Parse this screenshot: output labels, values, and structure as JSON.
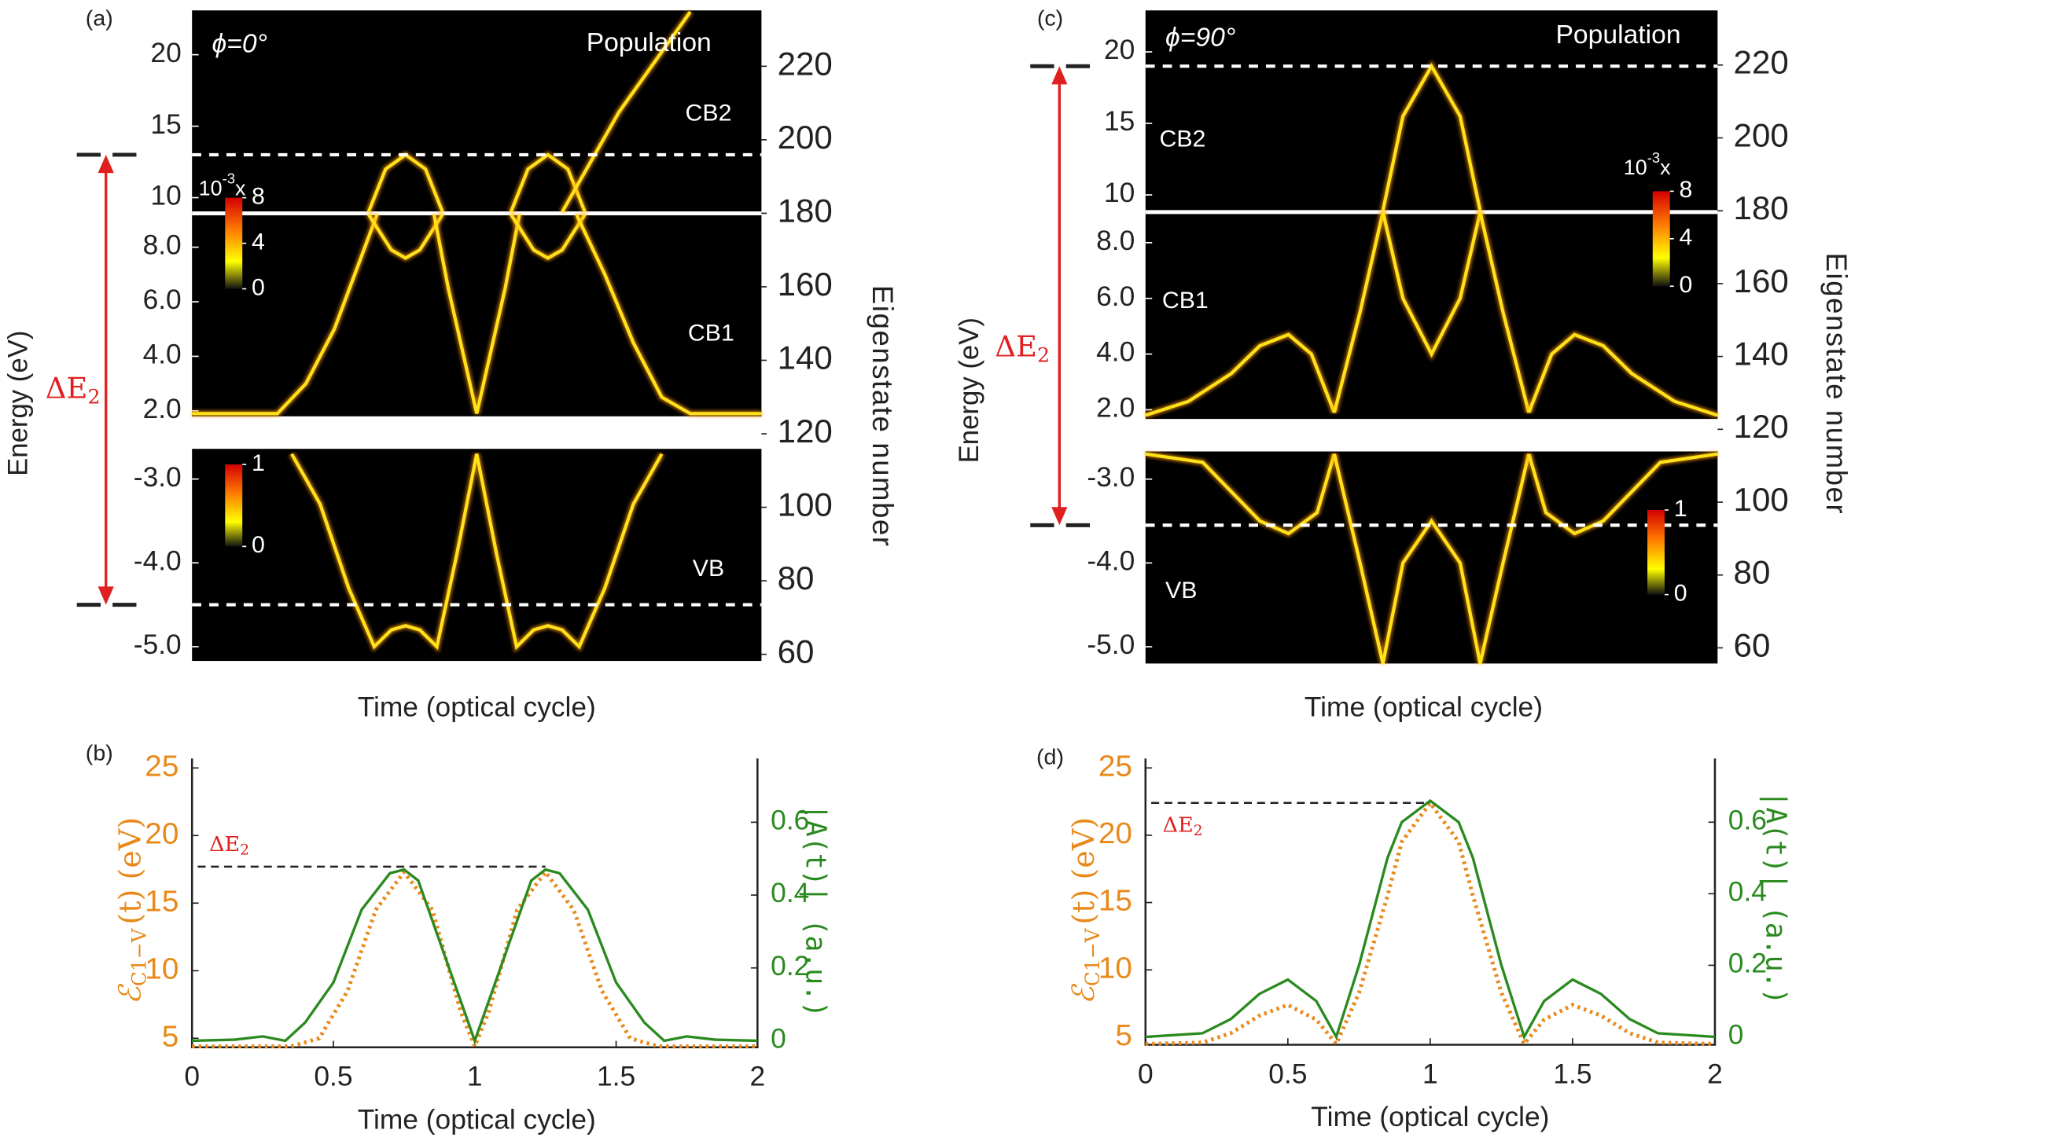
{
  "chart_data": [
    {
      "type": "heatmap",
      "panel": "(a)",
      "title": "ϕ=0°",
      "label": "Population",
      "xlabel": "Time (optical cycle)",
      "ylabel": "Energy  (eV)",
      "y2label": "Eigenstate number",
      "annotation": {
        "main": "ΔE",
        "sub": "2"
      },
      "xlim": [
        0,
        2
      ],
      "trace_color": "#ffe21a",
      "segments": [
        {
          "name": "CB2",
          "ylim": [
            8.9,
            23.1
          ],
          "yticks": [
            10,
            15,
            20
          ],
          "level": 13.0,
          "traces": [
            {
              "x": [
                0.62,
                0.68,
                0.75,
                0.82,
                0.88
              ],
              "values": [
                9.0,
                12.0,
                13.0,
                12.0,
                9.0
              ]
            },
            {
              "x": [
                1.12,
                1.18,
                1.25,
                1.32,
                1.38
              ],
              "values": [
                9.0,
                12.0,
                13.0,
                12.0,
                9.0
              ]
            },
            {
              "x": [
                1.3,
                1.5,
                1.75
              ],
              "values": [
                9.0,
                16.0,
                23.0
              ]
            }
          ]
        },
        {
          "name": "CB1",
          "ylim": [
            1.8,
            9.24
          ],
          "yticks": [
            {
              "value": 2,
              "label": "2.0"
            },
            {
              "value": 4,
              "label": "4.0"
            },
            {
              "value": 6,
              "label": "6.0"
            },
            {
              "value": 8,
              "label": "8.0"
            }
          ],
          "traces": [
            {
              "x": [
                0,
                0.3,
                0.4,
                0.5,
                0.6,
                0.65
              ],
              "values": [
                1.9,
                1.9,
                3.0,
                5.0,
                7.8,
                9.2
              ]
            },
            {
              "x": [
                0.62,
                0.7,
                0.75,
                0.8,
                0.88
              ],
              "values": [
                9.2,
                7.9,
                7.6,
                7.9,
                9.2
              ]
            },
            {
              "x": [
                0.85,
                0.9,
                0.95,
                1.0,
                1.05,
                1.1,
                1.15
              ],
              "values": [
                9.2,
                6.5,
                4.2,
                1.9,
                4.2,
                6.5,
                9.2
              ]
            },
            {
              "x": [
                1.12,
                1.2,
                1.25,
                1.3,
                1.38
              ],
              "values": [
                9.2,
                7.9,
                7.6,
                7.9,
                9.2
              ]
            },
            {
              "x": [
                1.35,
                1.45,
                1.55,
                1.65,
                1.75,
                2.0
              ],
              "values": [
                9.2,
                7.0,
                4.5,
                2.5,
                1.9,
                1.9
              ]
            }
          ]
        },
        {
          "name": "VB",
          "ylim": [
            -5.17,
            -2.64
          ],
          "yticks": [
            {
              "value": -5,
              "label": "-5.0"
            },
            {
              "value": -4,
              "label": "-4.0"
            },
            {
              "value": -3,
              "label": "-3.0"
            }
          ],
          "level": -4.5,
          "traces": [
            {
              "x": [
                0.35,
                0.45,
                0.55,
                0.64,
                0.7,
                0.75,
                0.8,
                0.86,
                0.93,
                1.0,
                1.07,
                1.14,
                1.2,
                1.25,
                1.3,
                1.36,
                1.45,
                1.55,
                1.65
              ],
              "values": [
                -2.7,
                -3.3,
                -4.3,
                -5.0,
                -4.8,
                -4.75,
                -4.8,
                -5.0,
                -3.9,
                -2.7,
                -3.9,
                -5.0,
                -4.8,
                -4.75,
                -4.8,
                -5.0,
                -4.3,
                -3.3,
                -2.7
              ]
            }
          ]
        }
      ],
      "y2lim": [
        58.2,
        235.2
      ],
      "y2ticks": [
        60,
        80,
        100,
        120,
        140,
        160,
        180,
        200,
        220
      ],
      "colorbars": [
        {
          "lim": [
            0,
            8
          ],
          "ticks": [
            0,
            4,
            8
          ],
          "scale": {
            "base": "10",
            "exp": "-3",
            "suffix": "x"
          }
        },
        {
          "lim": [
            0,
            1
          ],
          "ticks": [
            0,
            1
          ]
        }
      ]
    },
    {
      "type": "line",
      "panel": "(b)",
      "xlabel": "Time (optical cycle)",
      "ylabel": {
        "symbol": "ℰ",
        "sub": "C1−V",
        "rest": "(t)  (eV)"
      },
      "y2label": "|A(t)| (a.u.)",
      "annotation": {
        "main": "ΔE",
        "sub": "2"
      },
      "level": {
        "y": 17.7,
        "x": [
          0.02,
          1.25
        ]
      },
      "xlim": [
        0,
        2
      ],
      "xticks": [
        0,
        0.5,
        1,
        1.5,
        2
      ],
      "ylim": [
        4.33,
        25.7
      ],
      "yticks": [
        5,
        10,
        15,
        20,
        25
      ],
      "y2lim": [
        -0.018,
        0.775
      ],
      "y2ticks": [
        0,
        0.2,
        0.4,
        0.6
      ],
      "series": [
        {
          "color": "#e8891a",
          "axis": "y",
          "dotted": true,
          "x": [
            0,
            0.35,
            0.45,
            0.55,
            0.65,
            0.75,
            0.85,
            0.95,
            1.0,
            1.05,
            1.15,
            1.25,
            1.35,
            1.45,
            1.55,
            1.65,
            2.0
          ],
          "values": [
            4.4,
            4.4,
            5.0,
            8.5,
            14.5,
            17.3,
            14.5,
            7.0,
            4.4,
            7.0,
            14.5,
            17.3,
            14.5,
            8.5,
            5.0,
            4.4,
            4.4
          ]
        },
        {
          "color": "#2a8a1f",
          "axis": "y2",
          "x": [
            0,
            0.15,
            0.25,
            0.33,
            0.4,
            0.5,
            0.6,
            0.7,
            0.75,
            0.8,
            0.9,
            1.0,
            1.1,
            1.2,
            1.25,
            1.3,
            1.4,
            1.5,
            1.6,
            1.67,
            1.75,
            1.85,
            2.0
          ],
          "values": [
            0,
            0.003,
            0.012,
            0,
            0.05,
            0.16,
            0.36,
            0.46,
            0.47,
            0.44,
            0.22,
            0,
            0.22,
            0.44,
            0.47,
            0.46,
            0.36,
            0.16,
            0.05,
            0,
            0.012,
            0.003,
            0
          ]
        }
      ]
    },
    {
      "type": "heatmap",
      "panel": "(c)",
      "title": "ϕ=90°",
      "label": "Population",
      "xlabel": "Time (optical cycle)",
      "ylabel": "Energy  (eV)",
      "y2label": "Eigenstate number",
      "annotation": {
        "main": "ΔE",
        "sub": "2"
      },
      "xlim": [
        0,
        2
      ],
      "trace_color": "#ffe21a",
      "segments": [
        {
          "name": "CB2",
          "ylim": [
            8.8,
            22.9
          ],
          "yticks": [
            10,
            15,
            20
          ],
          "level": 19.0,
          "traces": [
            {
              "x": [
                0.83,
                0.9,
                1.0,
                1.1,
                1.17
              ],
              "values": [
                8.9,
                15.5,
                19.0,
                15.5,
                8.9
              ]
            }
          ]
        },
        {
          "name": "CB1",
          "ylim": [
            1.67,
            9.1
          ],
          "yticks": [
            {
              "value": 2,
              "label": "2.0"
            },
            {
              "value": 4,
              "label": "4.0"
            },
            {
              "value": 6,
              "label": "6.0"
            },
            {
              "value": 8,
              "label": "8.0"
            }
          ],
          "traces": [
            {
              "x": [
                0,
                0.15,
                0.3,
                0.4,
                0.5,
                0.58,
                0.66
              ],
              "values": [
                1.8,
                2.3,
                3.3,
                4.3,
                4.7,
                4.0,
                1.9
              ]
            },
            {
              "x": [
                0.66,
                0.75,
                0.83
              ],
              "values": [
                1.9,
                5.5,
                9.1
              ]
            },
            {
              "x": [
                0.83,
                0.9,
                1.0,
                1.1,
                1.17
              ],
              "values": [
                9.1,
                6.0,
                4.0,
                6.0,
                9.1
              ]
            },
            {
              "x": [
                1.17,
                1.25,
                1.34
              ],
              "values": [
                9.1,
                5.5,
                1.9
              ]
            },
            {
              "x": [
                1.34,
                1.42,
                1.5,
                1.6,
                1.7,
                1.85,
                2.0
              ],
              "values": [
                1.9,
                4.0,
                4.7,
                4.3,
                3.3,
                2.3,
                1.8
              ]
            }
          ]
        },
        {
          "name": "VB",
          "ylim": [
            -5.2,
            -2.67
          ],
          "yticks": [
            {
              "value": -5,
              "label": "-5.0"
            },
            {
              "value": -4,
              "label": "-4.0"
            },
            {
              "value": -3,
              "label": "-3.0"
            }
          ],
          "level": -3.55,
          "traces": [
            {
              "x": [
                0,
                0.2,
                0.4,
                0.5,
                0.6,
                0.66
              ],
              "values": [
                -2.7,
                -2.8,
                -3.5,
                -3.65,
                -3.4,
                -2.7
              ]
            },
            {
              "x": [
                0.66,
                0.75,
                0.83,
                0.9,
                1.0,
                1.1,
                1.17,
                1.25,
                1.34
              ],
              "values": [
                -2.7,
                -4.0,
                -5.2,
                -4.0,
                -3.5,
                -4.0,
                -5.2,
                -4.0,
                -2.7
              ]
            },
            {
              "x": [
                1.34,
                1.4,
                1.5,
                1.6,
                1.8,
                2.0
              ],
              "values": [
                -2.7,
                -3.4,
                -3.65,
                -3.5,
                -2.8,
                -2.7
              ]
            }
          ]
        }
      ],
      "y2lim": [
        55.7,
        235
      ],
      "y2ticks": [
        60,
        80,
        100,
        120,
        140,
        160,
        180,
        200,
        220
      ],
      "colorbars": [
        {
          "lim": [
            0,
            8
          ],
          "ticks": [
            0,
            4,
            8
          ],
          "scale": {
            "base": "10",
            "exp": "-3",
            "suffix": "x"
          }
        },
        {
          "lim": [
            0,
            1
          ],
          "ticks": [
            0,
            1
          ]
        }
      ]
    },
    {
      "type": "line",
      "panel": "(d)",
      "xlabel": "Time (optical cycle)",
      "ylabel": {
        "symbol": "ℰ",
        "sub": "C1−V",
        "rest": "(t)  (eV)"
      },
      "y2label": "|A(t)| (a.u.)",
      "annotation": {
        "main": "ΔE",
        "sub": "2"
      },
      "level": {
        "y": 22.4,
        "x": [
          0.02,
          1.0
        ]
      },
      "xlim": [
        0,
        2
      ],
      "xticks": [
        0,
        0.5,
        1,
        1.5,
        2
      ],
      "ylim": [
        4.44,
        25.7
      ],
      "yticks": [
        5,
        10,
        15,
        20,
        25
      ],
      "y2lim": [
        -0.022,
        0.778
      ],
      "y2ticks": [
        0,
        0.2,
        0.4,
        0.6
      ],
      "series": [
        {
          "color": "#e8891a",
          "axis": "y",
          "dotted": true,
          "x": [
            0,
            0.2,
            0.3,
            0.4,
            0.5,
            0.6,
            0.67,
            0.75,
            0.85,
            0.9,
            1.0,
            1.1,
            1.15,
            1.25,
            1.33,
            1.4,
            1.5,
            1.6,
            1.7,
            1.8,
            2.0
          ],
          "values": [
            4.5,
            4.6,
            5.3,
            6.6,
            7.4,
            6.3,
            4.5,
            8.3,
            15.5,
            19.5,
            22.4,
            19.5,
            15.5,
            8.3,
            4.5,
            6.3,
            7.4,
            6.6,
            5.3,
            4.6,
            4.5
          ]
        },
        {
          "color": "#2a8a1f",
          "axis": "y2",
          "x": [
            0,
            0.2,
            0.3,
            0.4,
            0.5,
            0.6,
            0.67,
            0.75,
            0.85,
            0.9,
            1.0,
            1.1,
            1.15,
            1.25,
            1.33,
            1.4,
            1.5,
            1.6,
            1.7,
            1.8,
            2.0
          ],
          "values": [
            0,
            0.01,
            0.05,
            0.12,
            0.16,
            0.1,
            0,
            0.2,
            0.5,
            0.6,
            0.66,
            0.6,
            0.5,
            0.2,
            0,
            0.1,
            0.16,
            0.12,
            0.05,
            0.01,
            0
          ]
        }
      ]
    }
  ]
}
